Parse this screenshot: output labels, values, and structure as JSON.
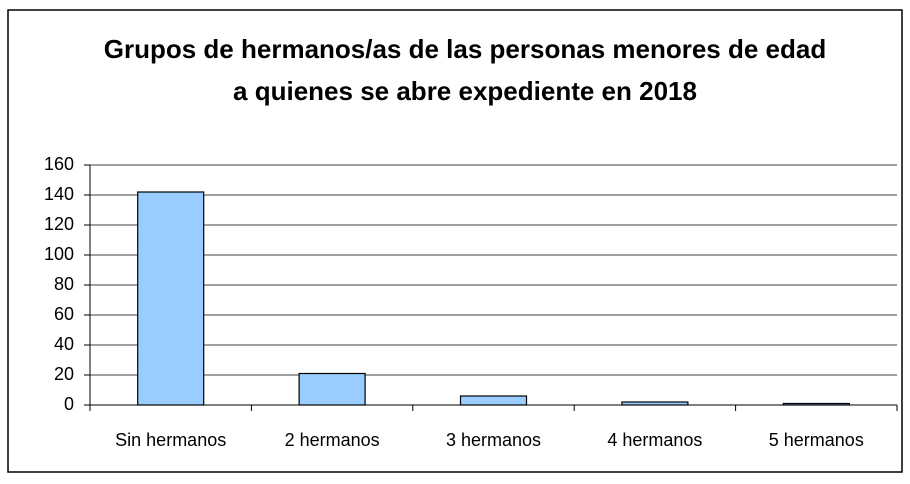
{
  "chart_data": {
    "type": "bar",
    "title": "Grupos de hermanos/as de las personas menores de edad a quienes se abre expediente en 2018",
    "categories": [
      "Sin hermanos",
      "2 hermanos",
      "3 hermanos",
      "4 hermanos",
      "5 hermanos"
    ],
    "values": [
      142,
      21,
      6,
      2,
      1
    ],
    "color": "#99ccff",
    "ylim": [
      0,
      160
    ],
    "yticks": [
      0,
      20,
      40,
      60,
      80,
      100,
      120,
      140,
      160
    ],
    "grid": true
  }
}
